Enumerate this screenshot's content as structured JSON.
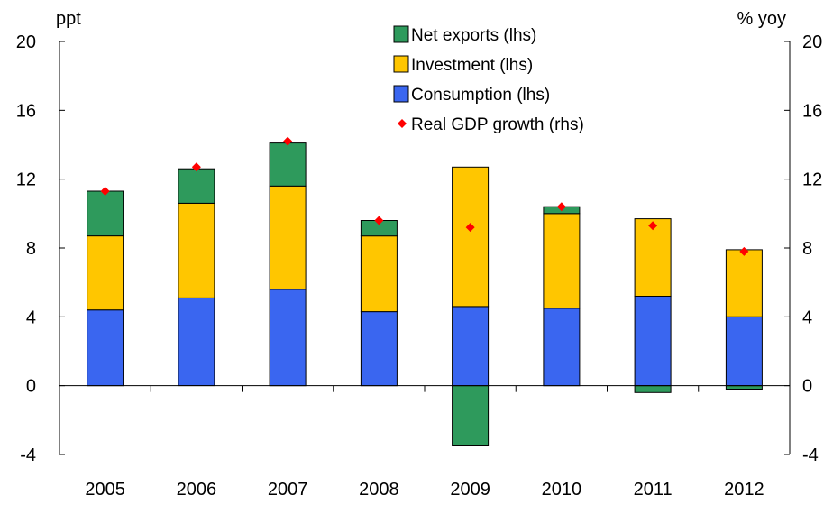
{
  "chart_data": {
    "type": "bar",
    "stacked": true,
    "title": "",
    "left_axis_unit": "ppt",
    "right_axis_unit": "% yoy",
    "categories": [
      "2005",
      "2006",
      "2007",
      "2008",
      "2009",
      "2010",
      "2011",
      "2012"
    ],
    "series": [
      {
        "name": "Consumption (lhs)",
        "axis": "left",
        "color": "#3A66F0",
        "values": [
          4.4,
          5.1,
          5.6,
          4.3,
          4.6,
          4.5,
          5.2,
          4.0
        ]
      },
      {
        "name": "Investment (lhs)",
        "axis": "left",
        "color": "#FFC600",
        "values": [
          4.3,
          5.5,
          6.0,
          4.4,
          8.1,
          5.5,
          4.5,
          3.9
        ]
      },
      {
        "name": "Net exports (lhs)",
        "axis": "left",
        "color": "#2E9A5C",
        "values": [
          2.6,
          2.0,
          2.5,
          0.9,
          -3.5,
          0.4,
          -0.4,
          -0.2
        ]
      },
      {
        "name": "Real GDP growth (rhs)",
        "axis": "right",
        "type": "scatter",
        "marker": "diamond",
        "color": "#FF0000",
        "values": [
          11.3,
          12.7,
          14.2,
          9.6,
          9.2,
          10.4,
          9.3,
          7.8
        ]
      }
    ],
    "y_left": {
      "min": -4,
      "max": 20,
      "ticks": [
        -4,
        0,
        4,
        8,
        12,
        16,
        20
      ]
    },
    "y_right": {
      "min": -4,
      "max": 20,
      "ticks": [
        -4,
        0,
        4,
        8,
        12,
        16,
        20
      ]
    },
    "legend": {
      "placement": "top-center",
      "order": [
        "Net exports (lhs)",
        "Investment (lhs)",
        "Consumption (lhs)",
        "Real GDP growth (rhs)"
      ]
    },
    "grid": false
  }
}
